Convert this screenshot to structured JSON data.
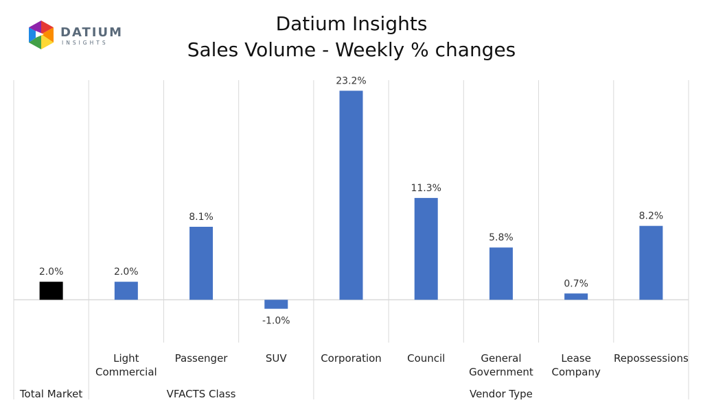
{
  "chart_data": {
    "type": "bar",
    "title": "Datium Insights",
    "subtitle": "Sales Volume - Weekly % changes",
    "ylabel": "",
    "xlabel": "",
    "ylim": [
      -5,
      25
    ],
    "grid": false,
    "legend": "none",
    "bar_color": "#4472C4",
    "highlight_color": "#000000",
    "categories": [
      {
        "label": [
          "Total Market"
        ],
        "value": 2.0,
        "data_label": "2.0%",
        "color": "#000000"
      },
      {
        "label": [
          "Light",
          "Commercial"
        ],
        "value": 2.0,
        "data_label": "2.0%",
        "color": "#4472C4"
      },
      {
        "label": [
          "Passenger"
        ],
        "value": 8.1,
        "data_label": "8.1%",
        "color": "#4472C4"
      },
      {
        "label": [
          "SUV"
        ],
        "value": -1.0,
        "data_label": "-1.0%",
        "color": "#4472C4"
      },
      {
        "label": [
          "Corporation"
        ],
        "value": 23.2,
        "data_label": "23.2%",
        "color": "#4472C4"
      },
      {
        "label": [
          "Council"
        ],
        "value": 11.3,
        "data_label": "11.3%",
        "color": "#4472C4"
      },
      {
        "label": [
          "General",
          "Government"
        ],
        "value": 5.8,
        "data_label": "5.8%",
        "color": "#4472C4"
      },
      {
        "label": [
          "Lease",
          "Company"
        ],
        "value": 0.7,
        "data_label": "0.7%",
        "color": "#4472C4"
      },
      {
        "label": [
          "Repossessions"
        ],
        "value": 8.2,
        "data_label": "8.2%",
        "color": "#4472C4"
      }
    ],
    "groups": [
      {
        "label": "",
        "span": [
          0,
          0
        ]
      },
      {
        "label": "VFACTS Class",
        "span": [
          1,
          3
        ]
      },
      {
        "label": "Vendor Type",
        "span": [
          4,
          8
        ]
      }
    ]
  },
  "logo": {
    "name": "DATIUM",
    "tagline": "INSIGHTS",
    "colors": [
      "#E53935",
      "#FB8C00",
      "#FDD835",
      "#43A047",
      "#1E88E5",
      "#8E24AA"
    ]
  }
}
